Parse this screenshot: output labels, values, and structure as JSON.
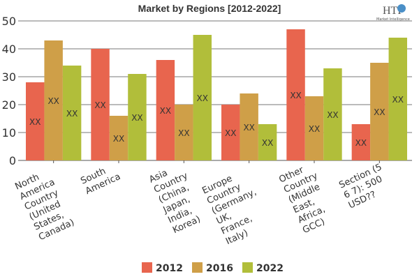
{
  "logo": {
    "text": "HTF",
    "subtext": "Market Intelligence"
  },
  "chart_data": {
    "type": "bar",
    "title": "Market by Regions [2012-2022]",
    "xlabel": "",
    "ylabel": "",
    "ylim": [
      0,
      50
    ],
    "yticks": [
      0,
      10,
      20,
      30,
      40,
      50
    ],
    "grid": true,
    "legend_position": "bottom",
    "categories": [
      [
        "North",
        "America",
        "Country",
        "(United",
        "States,",
        "Canada)"
      ],
      [
        "South",
        "America"
      ],
      [
        "Asia",
        "Country",
        "(China,",
        "Japan,",
        "India,",
        "Korea)"
      ],
      [
        "Europe",
        "Country",
        "(Germany,",
        "UK,",
        "France,",
        "Italy)"
      ],
      [
        "Other",
        "Country",
        "(Middle",
        "East,",
        "Africa,",
        "GCC)"
      ],
      [
        "Section (5",
        "6 7): 500",
        "USD??"
      ]
    ],
    "series": [
      {
        "name": "2012",
        "color": "#e8654e",
        "values": [
          28,
          40,
          36,
          20,
          47,
          13
        ]
      },
      {
        "name": "2016",
        "color": "#cf9f48",
        "values": [
          43,
          16,
          20,
          24,
          23,
          35
        ]
      },
      {
        "name": "2022",
        "color": "#b1be3a",
        "values": [
          34,
          31,
          45,
          13,
          33,
          44
        ]
      }
    ],
    "data_label": "XX"
  }
}
